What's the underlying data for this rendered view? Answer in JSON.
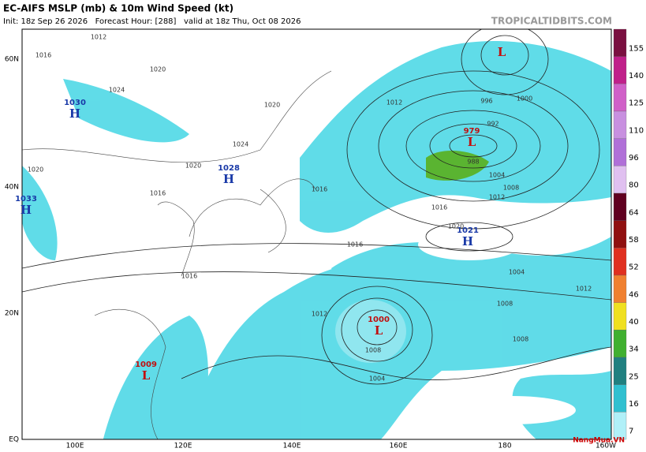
{
  "header": {
    "title": "EC-AIFS MSLP (mb) & 10m Wind Speed (kt)",
    "subtitle": "Init: 18z Sep 26 2026   Forecast Hour: [288]   valid at 18z Thu, Oct 08 2026",
    "site": "TROPICALTIDBITS.COM"
  },
  "axes": {
    "lat": [
      "60N",
      "40N",
      "20N",
      "EQ"
    ],
    "lon": [
      "100E",
      "120E",
      "140E",
      "160E",
      "180",
      "160W"
    ]
  },
  "centers": [
    {
      "letter": "H",
      "value": 1030
    },
    {
      "letter": "H",
      "value": 1028
    },
    {
      "letter": "H",
      "value": 1033
    },
    {
      "letter": "H",
      "value": 1021
    },
    {
      "letter": "L",
      "value": 979
    },
    {
      "letter": "L",
      "value": 1000
    },
    {
      "letter": "L",
      "value": 1009
    },
    {
      "letter": "L"
    }
  ],
  "contour_labels": [
    1012,
    1016,
    1020,
    1024,
    1020,
    1016,
    1020,
    1024,
    1020,
    1016,
    1012,
    1008,
    1004,
    1000,
    996,
    992,
    988,
    1004,
    1008,
    1012,
    1016,
    1020,
    1016,
    1012,
    1008,
    1004,
    1008,
    1012,
    1016
  ],
  "colorbar": {
    "ticks": [
      155,
      140,
      125,
      110,
      96,
      80,
      64,
      58,
      52,
      46,
      40,
      34,
      25,
      16,
      7
    ]
  },
  "watermark": "NangMua.VN"
}
